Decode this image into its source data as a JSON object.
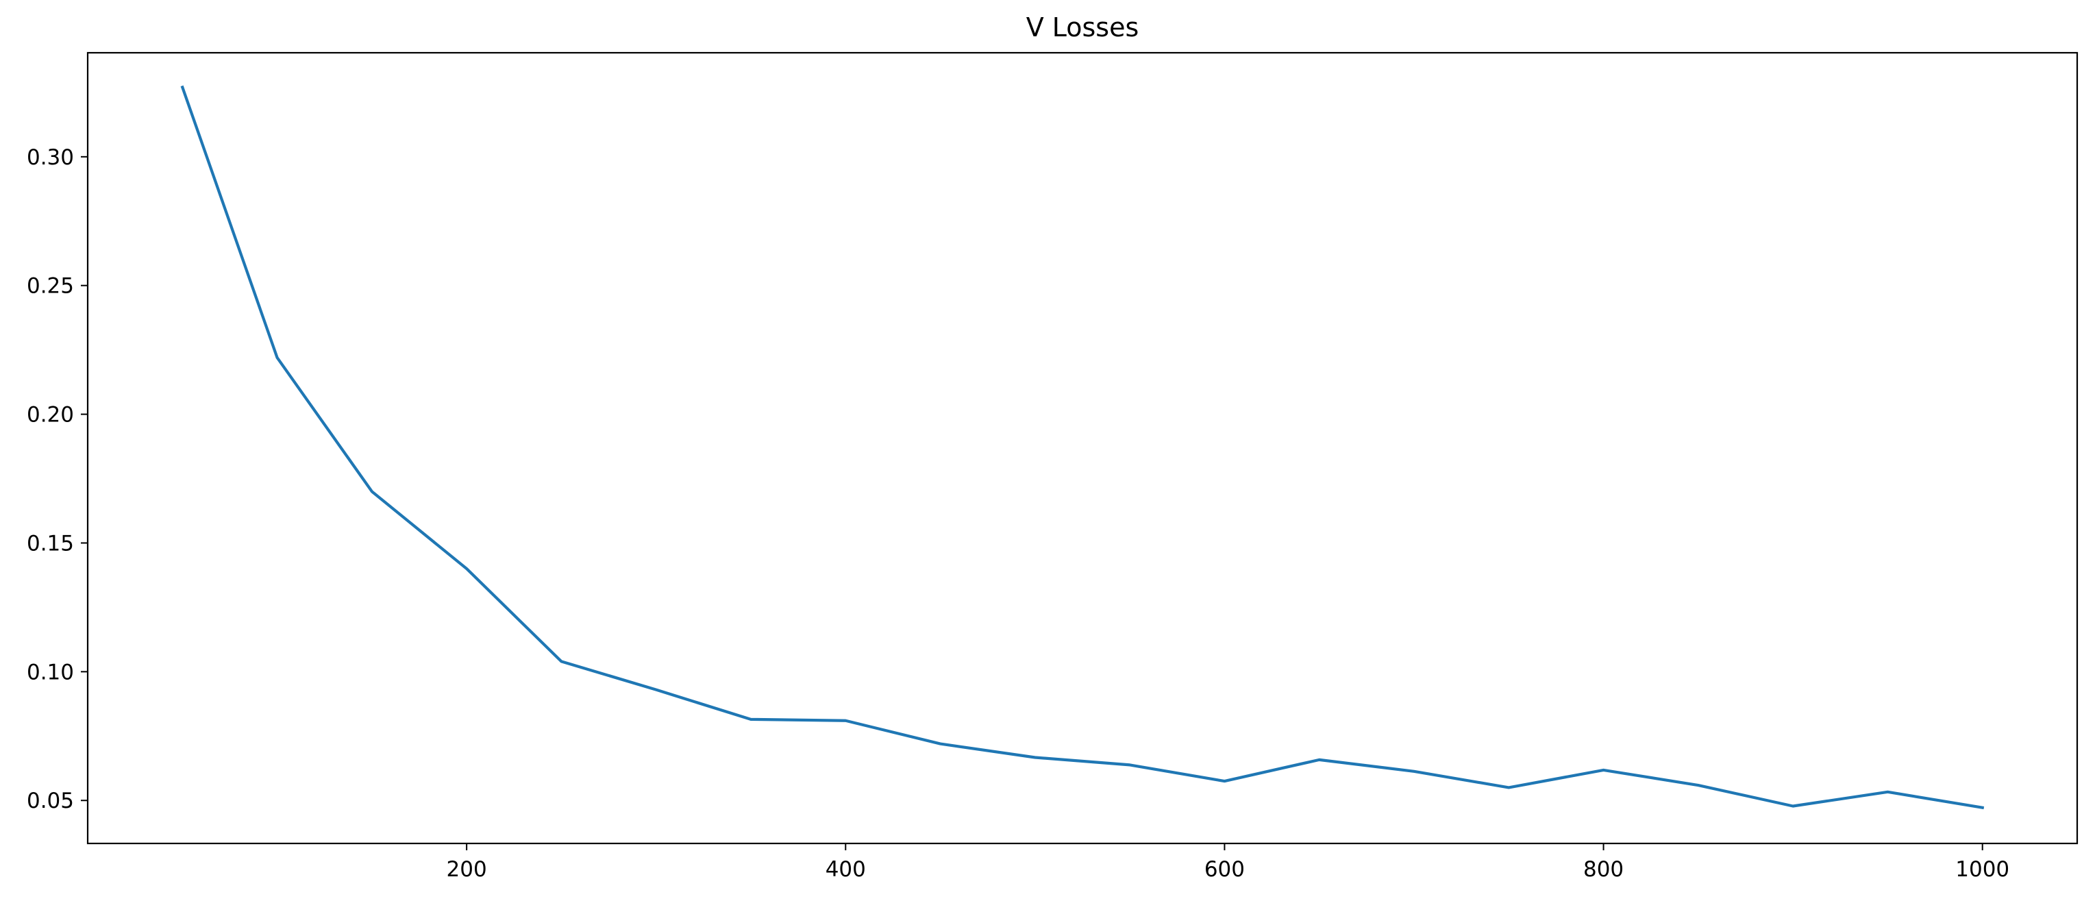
{
  "chart_data": {
    "type": "line",
    "title": "V Losses",
    "xlabel": "",
    "ylabel": "",
    "grid": false,
    "xlim": [
      0,
      1050
    ],
    "ylim": [
      0.0333,
      0.3404
    ],
    "xticks": [
      200,
      400,
      600,
      800,
      1000
    ],
    "xtick_labels": [
      "200",
      "400",
      "600",
      "800",
      "1000"
    ],
    "yticks": [
      0.05,
      0.1,
      0.15,
      0.2,
      0.25,
      0.3
    ],
    "ytick_labels": [
      "0.05",
      "0.10",
      "0.15",
      "0.20",
      "0.25",
      "0.30"
    ],
    "series": [
      {
        "color": "#1f77b4",
        "x": [
          50,
          100,
          150,
          200,
          250,
          300,
          350,
          400,
          450,
          500,
          550,
          600,
          650,
          700,
          750,
          800,
          850,
          900,
          950,
          1000
        ],
        "y": [
          0.327,
          0.222,
          0.17,
          0.14,
          0.104,
          0.093,
          0.0815,
          0.081,
          0.072,
          0.0667,
          0.0638,
          0.0575,
          0.0658,
          0.0613,
          0.055,
          0.0618,
          0.0559,
          0.0478,
          0.0533,
          0.0472
        ]
      }
    ]
  }
}
